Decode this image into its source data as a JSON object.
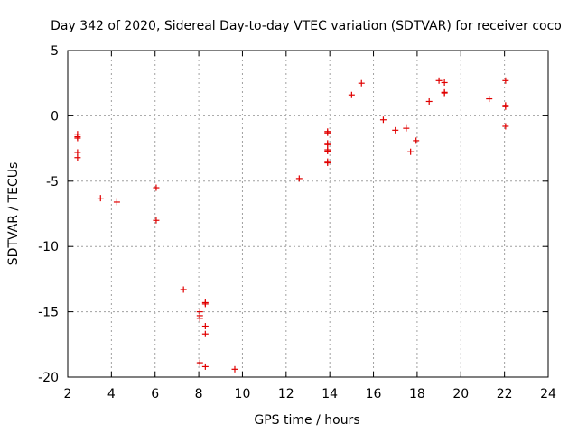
{
  "chart_data": {
    "type": "scatter",
    "title": "Day 342 of 2020, Sidereal Day-to-day VTEC variation (SDTVAR) for receiver coco",
    "xlabel": "GPS time / hours",
    "ylabel": "SDTVAR / TECUs",
    "xlim": [
      2,
      24
    ],
    "ylim": [
      -20,
      5
    ],
    "xticks": [
      2,
      4,
      6,
      8,
      10,
      12,
      14,
      16,
      18,
      20,
      22,
      24
    ],
    "yticks": [
      5,
      0,
      -5,
      -10,
      -15,
      -20
    ],
    "xtick_labels": [
      "2",
      "4",
      "6",
      "8",
      "10",
      "12",
      "14",
      "16",
      "18",
      "20",
      "22",
      "24"
    ],
    "ytick_labels": [
      "5",
      "0",
      "-5",
      "-10",
      "-15",
      "-20"
    ],
    "grid": true,
    "marker": "+",
    "color": "#e00000",
    "series": [
      {
        "name": "SDTVAR",
        "points": [
          [
            2.45,
            -1.4
          ],
          [
            2.45,
            -1.6
          ],
          [
            2.45,
            -1.7
          ],
          [
            2.45,
            -2.8
          ],
          [
            2.45,
            -3.2
          ],
          [
            3.5,
            -6.3
          ],
          [
            4.25,
            -6.6
          ],
          [
            6.05,
            -5.5
          ],
          [
            6.05,
            -8.0
          ],
          [
            7.3,
            -13.3
          ],
          [
            8.05,
            -15.0
          ],
          [
            8.05,
            -15.3
          ],
          [
            8.05,
            -15.5
          ],
          [
            8.05,
            -18.9
          ],
          [
            8.3,
            -14.4
          ],
          [
            8.3,
            -14.3
          ],
          [
            8.3,
            -16.1
          ],
          [
            8.3,
            -16.7
          ],
          [
            8.3,
            -19.2
          ],
          [
            9.65,
            -19.4
          ],
          [
            12.6,
            -4.8
          ],
          [
            13.9,
            -1.2
          ],
          [
            13.9,
            -1.3
          ],
          [
            13.9,
            -2.1
          ],
          [
            13.9,
            -2.2
          ],
          [
            13.9,
            -2.6
          ],
          [
            13.9,
            -2.7
          ],
          [
            13.9,
            -3.5
          ],
          [
            13.9,
            -3.6
          ],
          [
            15.0,
            1.6
          ],
          [
            15.45,
            2.5
          ],
          [
            16.45,
            -0.3
          ],
          [
            17.0,
            -1.1
          ],
          [
            17.5,
            -0.95
          ],
          [
            17.7,
            -2.75
          ],
          [
            17.95,
            -1.9
          ],
          [
            18.55,
            1.1
          ],
          [
            19.0,
            2.7
          ],
          [
            19.25,
            2.55
          ],
          [
            19.25,
            1.8
          ],
          [
            19.25,
            1.75
          ],
          [
            21.3,
            1.3
          ],
          [
            22.05,
            0.8
          ],
          [
            22.05,
            0.7
          ],
          [
            22.05,
            2.7
          ],
          [
            22.05,
            -0.8
          ]
        ]
      }
    ]
  }
}
